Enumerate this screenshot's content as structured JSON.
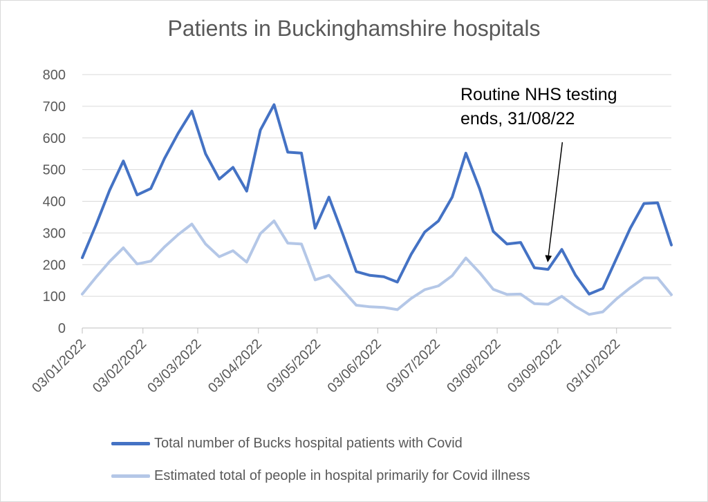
{
  "chart_data": {
    "type": "line",
    "title": "Patients in Buckinghamshire hospitals",
    "ylim": [
      0,
      800
    ],
    "yticks": [
      0,
      100,
      200,
      300,
      400,
      500,
      600,
      700,
      800
    ],
    "xlim": [
      "2022-01-03",
      "2022-10-31"
    ],
    "xticks": [
      "03/01/2022",
      "03/02/2022",
      "03/03/2022",
      "03/04/2022",
      "03/05/2022",
      "03/06/2022",
      "03/07/2022",
      "03/08/2022",
      "03/09/2022",
      "03/10/2022"
    ],
    "grid": true,
    "legend_position": "bottom",
    "x": [
      "2022-01-03",
      "2022-01-10",
      "2022-01-17",
      "2022-01-24",
      "2022-01-31",
      "2022-02-07",
      "2022-02-14",
      "2022-02-21",
      "2022-02-28",
      "2022-03-07",
      "2022-03-14",
      "2022-03-21",
      "2022-03-28",
      "2022-04-04",
      "2022-04-11",
      "2022-04-18",
      "2022-04-25",
      "2022-05-02",
      "2022-05-09",
      "2022-05-16",
      "2022-05-23",
      "2022-05-30",
      "2022-06-06",
      "2022-06-13",
      "2022-06-20",
      "2022-06-27",
      "2022-07-04",
      "2022-07-11",
      "2022-07-18",
      "2022-07-25",
      "2022-08-01",
      "2022-08-08",
      "2022-08-15",
      "2022-08-22",
      "2022-08-29",
      "2022-09-05",
      "2022-09-12",
      "2022-09-19",
      "2022-09-26",
      "2022-10-03",
      "2022-10-10",
      "2022-10-17",
      "2022-10-24",
      "2022-10-31"
    ],
    "series": [
      {
        "name": "Total number of Bucks hospital patients with Covid",
        "color": "#4472c4",
        "values": [
          222,
          325,
          435,
          527,
          420,
          440,
          535,
          615,
          685,
          550,
          470,
          507,
          432,
          625,
          705,
          555,
          552,
          315,
          413,
          298,
          178,
          166,
          162,
          145,
          232,
          303,
          338,
          413,
          552,
          440,
          305,
          265,
          270,
          190,
          185,
          248,
          167,
          107,
          125,
          220,
          315,
          393,
          395,
          262
        ]
      },
      {
        "name": "Estimated total of people in hospital primarily for Covid illness",
        "color": "#b4c7e7",
        "values": [
          107,
          160,
          210,
          253,
          202,
          211,
          256,
          295,
          328,
          265,
          225,
          244,
          208,
          298,
          338,
          268,
          265,
          152,
          166,
          120,
          72,
          67,
          65,
          58,
          93,
          121,
          133,
          165,
          221,
          175,
          122,
          106,
          107,
          77,
          75,
          100,
          68,
          43,
          51,
          92,
          127,
          158,
          158,
          105
        ]
      }
    ],
    "annotation": {
      "line1": "Routine NHS testing",
      "line2": "ends, 31/08/22",
      "target_date": "2022-08-31",
      "target_value": 190
    }
  }
}
